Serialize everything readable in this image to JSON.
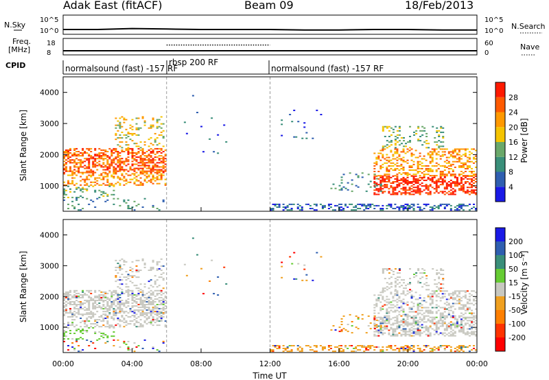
{
  "header": {
    "title": "Adak East (fitACF)",
    "beam": "Beam 09",
    "date": "18/Feb/2013"
  },
  "colors": {
    "power_scale": [
      "#1a1ae6",
      "#2f5fb0",
      "#3a8f7a",
      "#6aa86a",
      "#f5c400",
      "#ff9900",
      "#ff5a00",
      "#ff1a00"
    ],
    "velocity_scale": [
      "#1a1ae6",
      "#2f5fb0",
      "#3a8f7a",
      "#66cc33",
      "#c8c8c0",
      "#f0a020",
      "#ff7f00",
      "#ff3300",
      "#ff0000"
    ],
    "gray_scatter": "#c8c8c0"
  },
  "chart_data": [
    {
      "type": "line",
      "panel": "noise",
      "left_label": "N.Sky",
      "left_ticks": [
        "10^5",
        "10^0"
      ],
      "right_label": "N.Search",
      "right_ticks": [
        "10^5",
        "10^0"
      ],
      "series": [
        {
          "x": [
            0,
            2,
            4,
            6,
            8,
            10,
            12,
            14,
            16,
            18,
            20,
            22,
            24
          ],
          "y": [
            10,
            10,
            12,
            11,
            10,
            10,
            10,
            9,
            9,
            10,
            10,
            9,
            9
          ]
        }
      ]
    },
    {
      "type": "line",
      "panel": "frequency",
      "left_label": "Freq. [MHz]",
      "left_ticks": [
        "18",
        "8"
      ],
      "right_label": "Nave",
      "right_ticks": [
        "60",
        "0"
      ],
      "series": [
        {
          "x": [
            0,
            24
          ],
          "y": [
            10.5,
            10.5
          ]
        },
        {
          "x": [
            6,
            12
          ],
          "y": [
            14,
            14
          ]
        }
      ]
    },
    {
      "type": "table",
      "panel": "cpid",
      "label": "CPID",
      "segments": [
        {
          "start": 0,
          "end": 6,
          "name": "normalsound (fast) -157 RF"
        },
        {
          "start": 6,
          "end": 12,
          "name": "rbsp 200 RF"
        },
        {
          "start": 12,
          "end": 24,
          "name": "normalsound (fast) -157 RF"
        }
      ]
    },
    {
      "type": "heatmap",
      "panel": "power",
      "ylabel": "Slant Range [km]",
      "ylim": [
        180,
        4500
      ],
      "yticks": [
        1000,
        2000,
        3000,
        4000
      ],
      "colorbar_label": "Power [dB]",
      "colorbar_ticks": [
        4,
        8,
        12,
        16,
        20,
        24,
        28
      ],
      "colorbar_range": [
        0,
        32
      ]
    },
    {
      "type": "heatmap",
      "panel": "velocity",
      "ylabel": "Slant Range [km]",
      "ylim": [
        180,
        4500
      ],
      "yticks": [
        1000,
        2000,
        3000,
        4000
      ],
      "xlabel": "Time UT",
      "xticks": [
        "00:00",
        "04:00",
        "08:00",
        "12:00",
        "16:00",
        "20:00",
        "00:00"
      ],
      "xlim_hours": [
        0,
        24
      ],
      "colorbar_label": "Velocity [m s⁻¹]",
      "colorbar_ticks": [
        200,
        100,
        50,
        15,
        -15,
        -50,
        -100,
        -200
      ]
    }
  ]
}
